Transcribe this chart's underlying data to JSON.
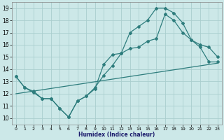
{
  "xlabel": "Humidex (Indice chaleur)",
  "bg_color": "#cce8e8",
  "grid_color": "#aacece",
  "line_color": "#2e7d7d",
  "xlim": [
    -0.5,
    23.5
  ],
  "ylim": [
    9.5,
    19.5
  ],
  "xticks": [
    0,
    1,
    2,
    3,
    4,
    5,
    6,
    7,
    8,
    9,
    10,
    11,
    12,
    13,
    14,
    15,
    16,
    17,
    18,
    19,
    20,
    21,
    22,
    23
  ],
  "yticks": [
    10,
    11,
    12,
    13,
    14,
    15,
    16,
    17,
    18,
    19
  ],
  "line1_x": [
    0,
    1,
    2,
    3,
    4,
    5,
    6,
    7,
    8,
    9,
    10,
    11,
    12,
    13,
    14,
    15,
    16,
    17,
    18,
    19,
    20,
    21,
    22,
    23
  ],
  "line1_y": [
    13.4,
    12.5,
    12.1,
    11.6,
    11.6,
    10.8,
    10.1,
    11.4,
    11.8,
    12.4,
    14.4,
    15.2,
    15.3,
    17.0,
    17.5,
    18.0,
    19.0,
    19.0,
    18.6,
    17.8,
    16.4,
    15.8,
    14.6,
    14.6
  ],
  "line2_x": [
    0,
    1,
    2,
    3,
    4,
    5,
    6,
    7,
    8,
    9,
    10,
    11,
    12,
    13,
    14,
    15,
    16,
    17,
    18,
    19,
    20,
    21,
    22,
    23
  ],
  "line2_y": [
    13.4,
    12.5,
    12.2,
    11.6,
    11.6,
    10.8,
    10.1,
    11.4,
    11.8,
    12.5,
    13.5,
    14.3,
    15.3,
    15.7,
    15.8,
    16.3,
    16.5,
    18.5,
    18.0,
    17.0,
    16.4,
    16.0,
    15.8,
    15.0
  ],
  "line3_x": [
    0,
    23
  ],
  "line3_y": [
    12.0,
    14.5
  ]
}
